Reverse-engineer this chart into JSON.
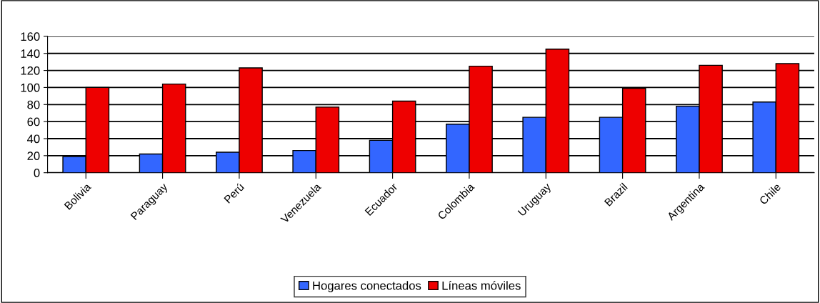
{
  "chart_data": {
    "type": "bar",
    "categories": [
      "Bolivia",
      "Paraguay",
      "Perú",
      "Venezuela",
      "Ecuador",
      "Colombia",
      "Uruguay",
      "Brazil",
      "Argentina",
      "Chile"
    ],
    "series": [
      {
        "name": "Hogares conectados",
        "color": "#3366ff",
        "values": [
          19,
          22,
          24,
          26,
          38,
          57,
          65,
          65,
          78,
          83
        ]
      },
      {
        "name": "Líneas móviles",
        "color": "#ee0000",
        "values": [
          100,
          104,
          123,
          77,
          84,
          125,
          145,
          99,
          126,
          128
        ]
      }
    ],
    "ylim": [
      0,
      160
    ],
    "yticks": [
      0,
      20,
      40,
      60,
      80,
      100,
      120,
      140,
      160
    ],
    "grid": "y",
    "legend": "bottom"
  }
}
